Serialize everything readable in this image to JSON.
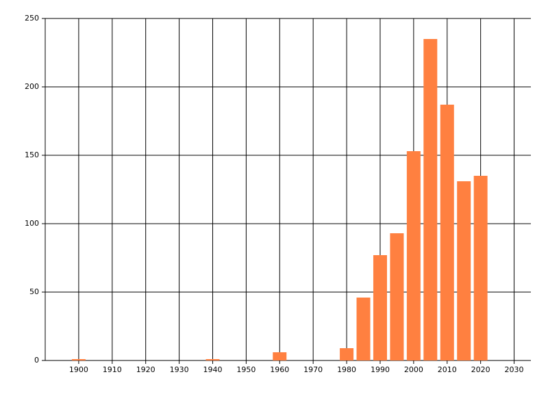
{
  "chart_data": {
    "type": "bar",
    "x": [
      1900,
      1940,
      1960,
      1980,
      1985,
      1990,
      1995,
      2000,
      2005,
      2010,
      2015,
      2020
    ],
    "values": [
      1,
      1,
      6,
      9,
      46,
      77,
      93,
      153,
      235,
      187,
      131,
      135
    ],
    "color": "#ff8040",
    "xlim": [
      1890,
      2035
    ],
    "xticks": [
      1900,
      1910,
      1920,
      1930,
      1940,
      1950,
      1960,
      1970,
      1980,
      1990,
      2000,
      2010,
      2020,
      2030
    ],
    "ylim": [
      0,
      250
    ],
    "yticks": [
      0,
      50,
      100,
      150,
      200,
      250
    ],
    "grid": true
  }
}
